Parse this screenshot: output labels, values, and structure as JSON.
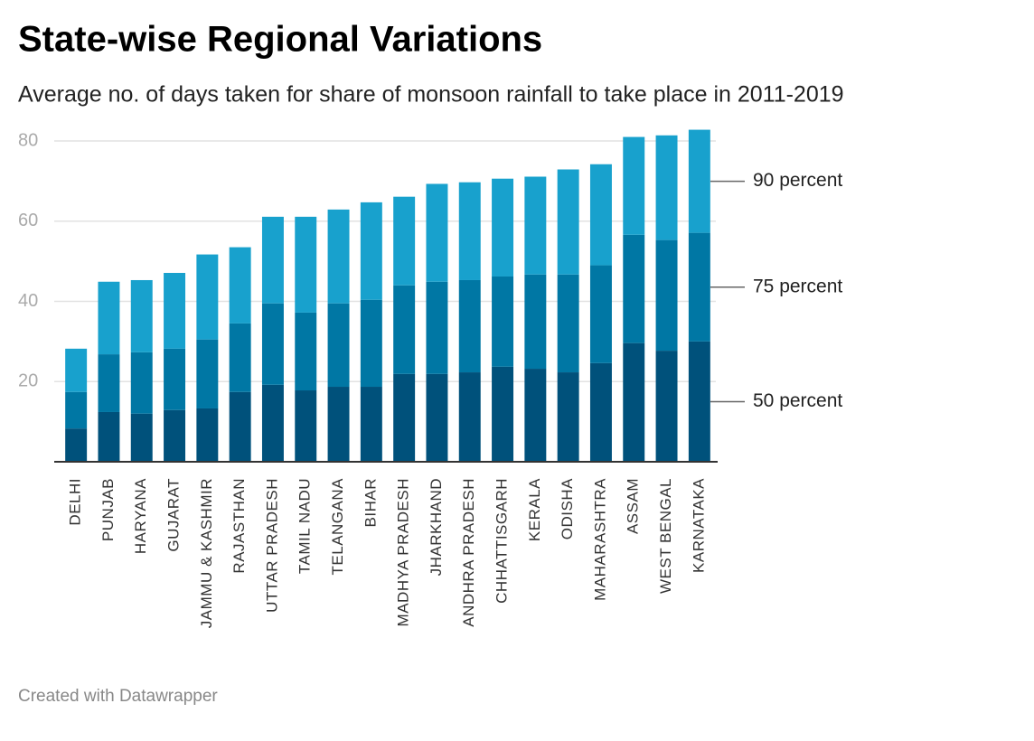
{
  "chart_data": {
    "type": "stacked-bar",
    "title": "State-wise Regional Variations",
    "subtitle": "Average no. of days taken for share of monsoon rainfall to take place in 2011-2019",
    "footer": "Created with Datawrapper",
    "categories": [
      "DELHI",
      "PUNJAB",
      "HARYANA",
      "GUJARAT",
      "JAMMU & KASHMIR",
      "RAJASTHAN",
      "UTTAR PRADESH",
      "TAMIL NADU",
      "TELANGANA",
      "BIHAR",
      "MADHYA PRADESH",
      "JHARKHAND",
      "ANDHRA PRADESH",
      "CHHATTISGARH",
      "KERALA",
      "ODISHA",
      "MAHARASHTRA",
      "ASSAM",
      "WEST BENGAL",
      "KARNATAKA"
    ],
    "series": [
      {
        "name": "50 percent",
        "color": "#00517b",
        "values": [
          8.3,
          12.4,
          12.0,
          12.9,
          13.3,
          17.4,
          19.2,
          17.8,
          18.7,
          18.7,
          21.9,
          21.9,
          22.3,
          23.7,
          23.2,
          22.3,
          24.6,
          29.6,
          27.7,
          30.0
        ]
      },
      {
        "name": "75 percent",
        "color": "#0077a4",
        "values": [
          9.1,
          14.4,
          15.3,
          15.3,
          17.2,
          17.1,
          20.3,
          19.4,
          20.8,
          21.7,
          22.1,
          23.0,
          23.0,
          22.5,
          23.5,
          24.4,
          24.4,
          27.0,
          27.6,
          27.1
        ]
      },
      {
        "name": "90 percent",
        "color": "#18a1cd",
        "values": [
          10.8,
          18.1,
          18.0,
          18.9,
          21.2,
          19.0,
          21.6,
          23.9,
          23.4,
          24.3,
          22.1,
          24.4,
          24.4,
          24.4,
          24.4,
          26.2,
          25.2,
          24.4,
          26.1,
          25.7
        ]
      }
    ],
    "ylim": [
      0,
      80
    ],
    "yticks": [
      20,
      40,
      60,
      80
    ],
    "grid": true
  }
}
